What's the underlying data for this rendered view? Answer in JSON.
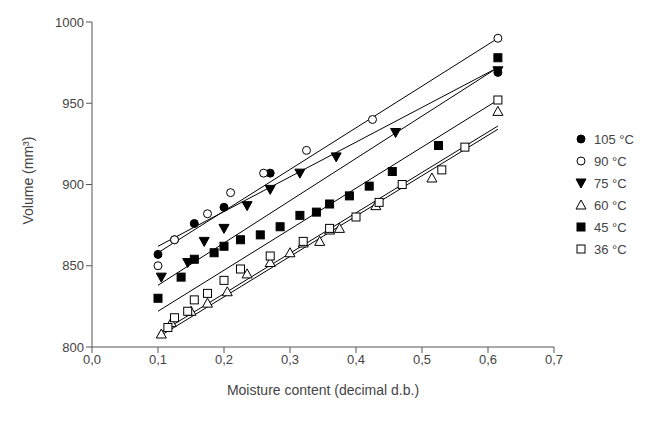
{
  "chart_data": {
    "type": "scatter",
    "x_label": "Moisture content (decimal d.b.)",
    "y_label": "Volume (mm³)",
    "xlim": [
      0,
      0.7
    ],
    "xticks": [
      {
        "value": 0,
        "label": "0,0"
      },
      {
        "value": 0.1,
        "label": "0,1"
      },
      {
        "value": 0.2,
        "label": "0,2"
      },
      {
        "value": 0.3,
        "label": "0,3"
      },
      {
        "value": 0.4,
        "label": "0,4"
      },
      {
        "value": 0.5,
        "label": "0,5"
      },
      {
        "value": 0.6,
        "label": "0,6"
      },
      {
        "value": 0.7,
        "label": "0,7"
      }
    ],
    "ylim": [
      800,
      1000
    ],
    "yticks": [
      800,
      850,
      900,
      950,
      1000
    ],
    "grid": false,
    "legend": "right",
    "series": [
      {
        "name": "105 °C",
        "color": "#000000",
        "marker": "circle",
        "x": [
          0.1,
          0.125,
          0.155,
          0.2,
          0.27,
          0.615
        ],
        "values": [
          857,
          866,
          876,
          886,
          907,
          969
        ],
        "fit": {
          "x": [
            0.1,
            0.615
          ],
          "y": [
            862,
            972
          ]
        }
      },
      {
        "name": "90 °C",
        "color": "#000000",
        "marker": "circle-open",
        "x": [
          0.1,
          0.125,
          0.175,
          0.21,
          0.26,
          0.325,
          0.425,
          0.615
        ],
        "values": [
          850,
          866,
          882,
          895,
          907,
          921,
          940,
          990
        ],
        "fit": {
          "x": [
            0.1,
            0.615
          ],
          "y": [
            858,
            990
          ]
        }
      },
      {
        "name": "75 °C",
        "color": "#000000",
        "marker": "triangle-down",
        "x": [
          0.105,
          0.145,
          0.17,
          0.2,
          0.235,
          0.27,
          0.315,
          0.37,
          0.46,
          0.615
        ],
        "values": [
          843,
          852,
          865,
          873,
          887,
          897,
          907,
          917,
          932,
          970
        ],
        "fit": {
          "x": [
            0.1,
            0.615
          ],
          "y": [
            838,
            972
          ]
        }
      },
      {
        "name": "60 °C",
        "color": "#000000",
        "marker": "triangle-open",
        "x": [
          0.105,
          0.12,
          0.15,
          0.175,
          0.205,
          0.235,
          0.27,
          0.3,
          0.32,
          0.345,
          0.36,
          0.375,
          0.43,
          0.515,
          0.615
        ],
        "values": [
          808,
          815,
          822,
          827,
          834,
          845,
          852,
          858,
          864,
          865,
          872,
          873,
          887,
          904,
          945
        ],
        "fit": {
          "x": [
            0.1,
            0.615
          ],
          "y": [
            808,
            936
          ]
        }
      },
      {
        "name": "45 °C",
        "color": "#000000",
        "marker": "square",
        "x": [
          0.1,
          0.135,
          0.155,
          0.185,
          0.2,
          0.225,
          0.255,
          0.285,
          0.315,
          0.34,
          0.36,
          0.39,
          0.42,
          0.455,
          0.525,
          0.615
        ],
        "values": [
          830,
          843,
          854,
          858,
          862,
          866,
          869,
          874,
          881,
          883,
          888,
          893,
          899,
          908,
          924,
          978
        ],
        "fit": {
          "x": [
            0.1,
            0.615
          ],
          "y": [
            822,
            952
          ]
        }
      },
      {
        "name": "36 °C",
        "color": "#000000",
        "marker": "square-open",
        "x": [
          0.115,
          0.125,
          0.145,
          0.155,
          0.175,
          0.2,
          0.225,
          0.27,
          0.32,
          0.36,
          0.4,
          0.435,
          0.47,
          0.53,
          0.565,
          0.615
        ],
        "values": [
          812,
          818,
          822,
          829,
          833,
          841,
          848,
          856,
          865,
          873,
          880,
          889,
          900,
          909,
          923,
          952
        ],
        "fit": {
          "x": [
            0.1,
            0.615
          ],
          "y": [
            806,
            934
          ]
        }
      }
    ]
  }
}
